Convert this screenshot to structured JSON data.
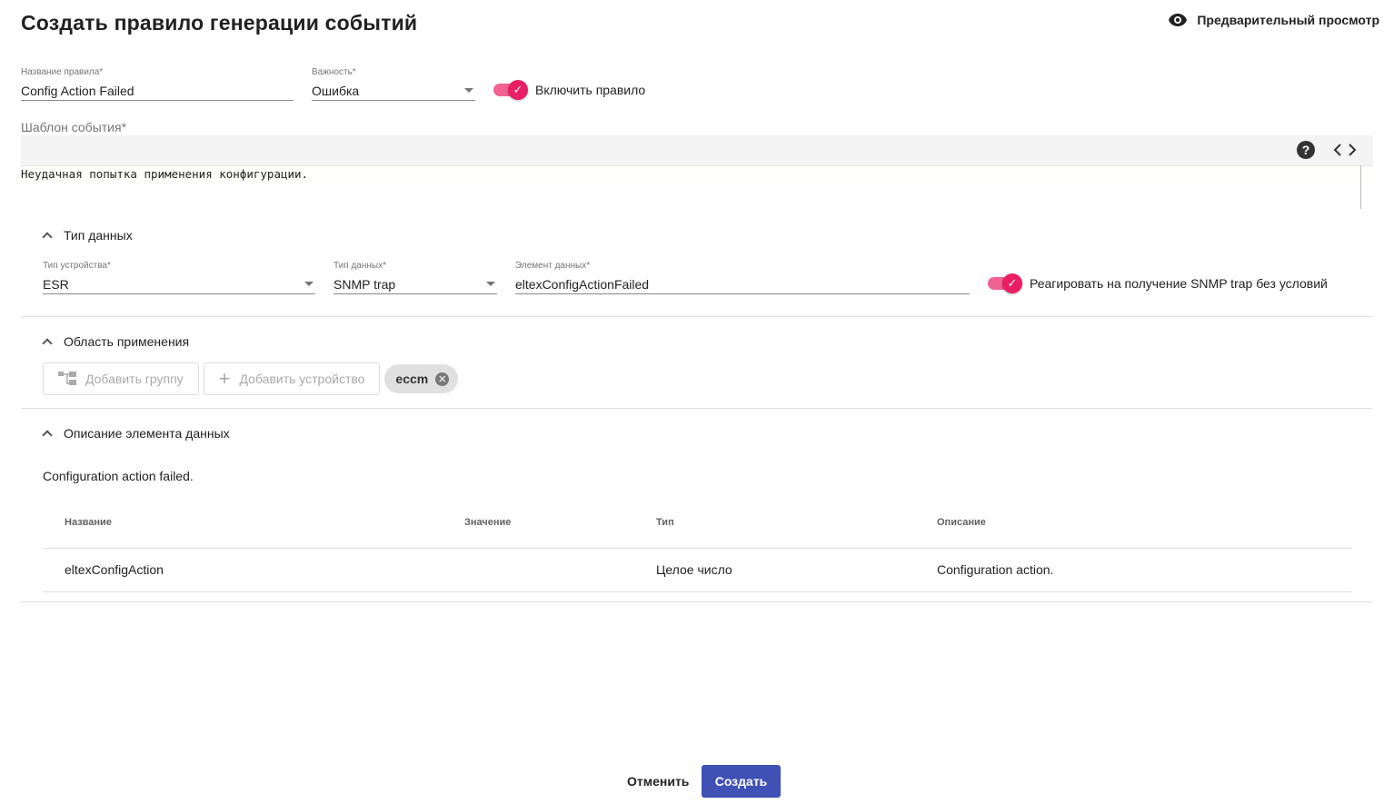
{
  "header": {
    "title": "Создать правило генерации событий",
    "preview_label": "Предварительный просмотр",
    "preview_icon": "eye-icon"
  },
  "rule": {
    "name_label": "Название правила*",
    "name_value": "Config Action Failed",
    "severity_label": "Важность*",
    "severity_value": "Ошибка",
    "enable_label": "Включить правило",
    "enabled": true
  },
  "template": {
    "label": "Шаблон события*",
    "text": "Неудачная попытка применения конфигурации.",
    "help_icon": "help-icon",
    "code_icon": "code-icon"
  },
  "data_type": {
    "title": "Тип данных",
    "device_type_label": "Тип устройства*",
    "device_type_value": "ESR",
    "data_type_label": "Тип данных*",
    "data_type_value": "SNMP trap",
    "element_label": "Элемент данных*",
    "element_value": "eltexConfigActionFailed",
    "trap_toggle_label": "Реагировать на получение SNMP trap без условий",
    "trap_toggle_on": true
  },
  "scope": {
    "title": "Область применения",
    "add_group": "Добавить группу",
    "add_device": "Добавить устройство",
    "chips": [
      "eccm"
    ]
  },
  "description": {
    "title": "Описание элемента данных",
    "text": "Configuration action failed.",
    "columns": [
      "Название",
      "Значение",
      "Тип",
      "Описание"
    ],
    "rows": [
      [
        "eltexConfigAction",
        "",
        "Целое число",
        "Configuration action."
      ]
    ]
  },
  "footer": {
    "cancel": "Отменить",
    "create": "Создать"
  },
  "colors": {
    "accent": "#e91e63",
    "primary": "#3f51b5"
  }
}
